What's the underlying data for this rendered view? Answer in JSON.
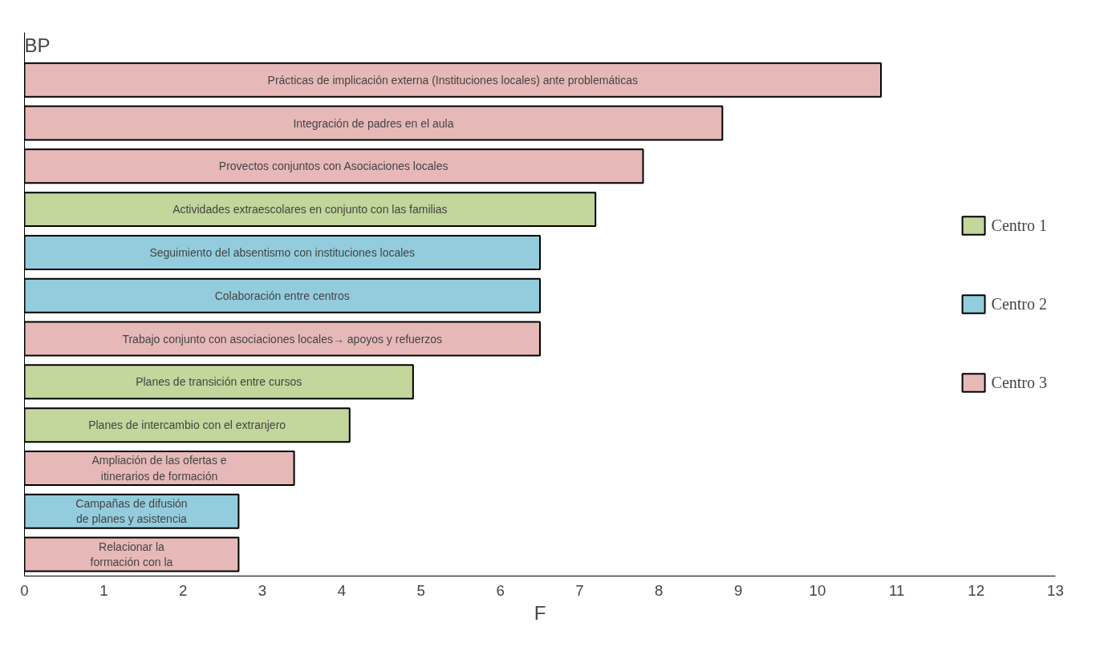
{
  "chart_data": {
    "type": "bar",
    "orientation": "horizontal",
    "stacked": true,
    "xlabel": "F",
    "ylabel": "BP",
    "categories": [
      "Prácticas de implicación externa (Instituciones locales) ante problemáticas",
      "Integración de padres en el aula",
      "Provectos conjuntos con Asociaciones locales",
      "Actividades extraescolares en conjunto con las familias",
      "Seguimiento del absentismo con instituciones locales",
      "Colaboración entre centros",
      "Trabajo conjunto con asociaciones locales→ apoyos y refuerzos",
      "Planes de transición entre cursos",
      "Planes de intercambio con el extranjero",
      "Ampliación de las ofertas e\nitinerarios de formación",
      "Campañas de difusión\nde planes y asistencia",
      "Relacionar la\nformación con la"
    ],
    "series": [
      {
        "name": "Centro 1",
        "color": "#c3d69b",
        "values": [
          null,
          null,
          null,
          7.2,
          null,
          null,
          null,
          4.9,
          4.1,
          null,
          null,
          null
        ]
      },
      {
        "name": "Centro 2",
        "color": "#93cddd",
        "values": [
          null,
          null,
          null,
          null,
          6.5,
          6.5,
          null,
          null,
          null,
          null,
          2.7,
          null
        ]
      },
      {
        "name": "Centro 3",
        "color": "#e6b9b8",
        "values": [
          10.8,
          8.8,
          7.8,
          null,
          null,
          null,
          6.5,
          null,
          null,
          3.4,
          null,
          2.7
        ]
      }
    ],
    "xlim": [
      0,
      13
    ],
    "xticks": [
      0,
      1,
      2,
      3,
      4,
      5,
      6,
      7,
      8,
      9,
      10,
      11,
      12,
      13
    ],
    "tick_labels": "x",
    "grid": false,
    "legend": "right"
  }
}
